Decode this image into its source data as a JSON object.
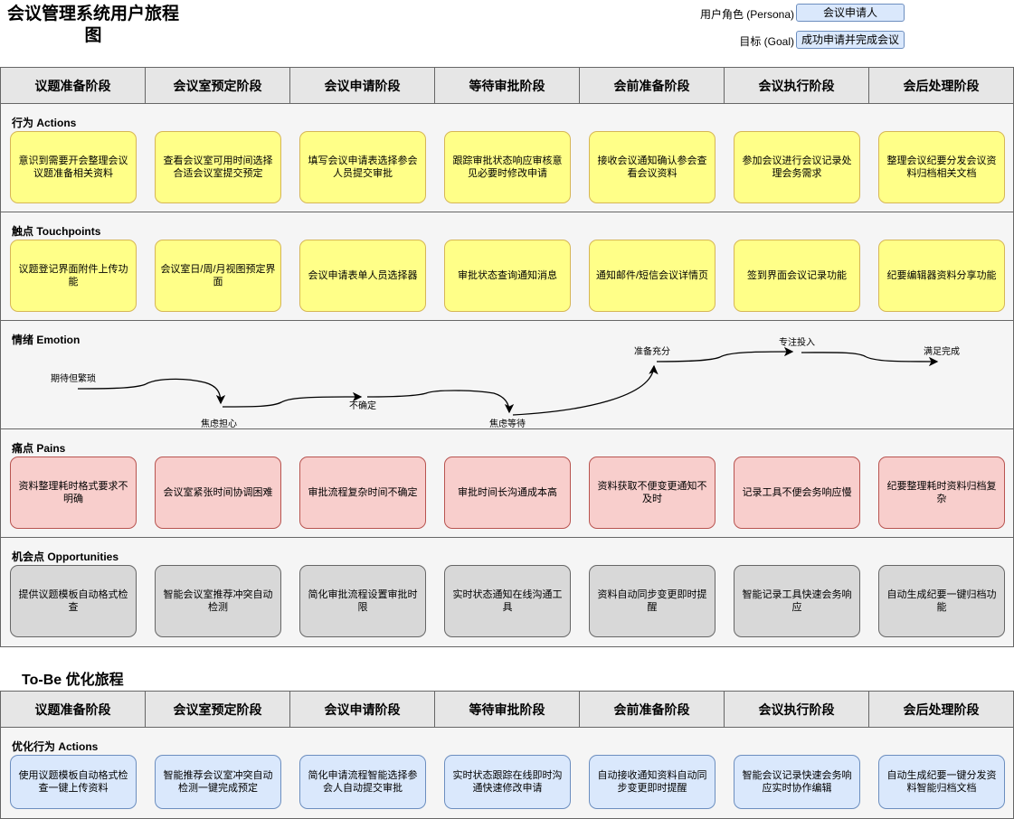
{
  "title": "会议管理系统用户旅程图",
  "persona": {
    "label": "用户角色 (Persona)",
    "value": "会议申请人"
  },
  "goal": {
    "label": "目标 (Goal)",
    "value": "成功申请并完成会议"
  },
  "stages": [
    "议题准备阶段",
    "会议室预定阶段",
    "会议申请阶段",
    "等待审批阶段",
    "会前准备阶段",
    "会议执行阶段",
    "会后处理阶段"
  ],
  "actions": {
    "label": "行为 Actions",
    "items": [
      "意识到需要开会整理会议议题准备相关资料",
      "查看会议室可用时间选择合适会议室提交预定",
      "填写会议申请表选择参会人员提交审批",
      "跟踪审批状态响应审核意见必要时修改申请",
      "接收会议通知确认参会查看会议资料",
      "参加会议进行会议记录处理会务需求",
      "整理会议纪要分发会议资料归档相关文档"
    ]
  },
  "touchpoints": {
    "label": "触点 Touchpoints",
    "items": [
      "议题登记界面附件上传功能",
      "会议室日/周/月视图预定界面",
      "会议申请表单人员选择器",
      "审批状态查询通知消息",
      "通知邮件/短信会议详情页",
      "签到界面会议记录功能",
      "纪要编辑器资料分享功能"
    ]
  },
  "emotion": {
    "label": "情绪 Emotion",
    "points": [
      "期待但繁琐",
      "焦虑担心",
      "不确定",
      "焦虑等待",
      "准备充分",
      "专注投入",
      "满足完成"
    ]
  },
  "pains": {
    "label": "痛点 Pains",
    "items": [
      "资料整理耗时格式要求不明确",
      "会议室紧张时间协调困难",
      "审批流程复杂时间不确定",
      "审批时间长沟通成本高",
      "资料获取不便变更通知不及时",
      "记录工具不便会务响应慢",
      "纪要整理耗时资料归档复杂"
    ]
  },
  "opportunities": {
    "label": "机会点 Opportunities",
    "items": [
      "提供议题模板自动格式检查",
      "智能会议室推荐冲突自动检测",
      "简化审批流程设置审批时限",
      "实时状态通知在线沟通工具",
      "资料自动同步变更即时提醒",
      "智能记录工具快速会务响应",
      "自动生成纪要一键归档功能"
    ]
  },
  "tobe": {
    "title": "To-Be 优化旅程",
    "stages": [
      "议题准备阶段",
      "会议室预定阶段",
      "会议申请阶段",
      "等待审批阶段",
      "会前准备阶段",
      "会议执行阶段",
      "会后处理阶段"
    ],
    "actions": {
      "label": "优化行为 Actions",
      "items": [
        "使用议题模板自动格式检查一键上传资料",
        "智能推荐会议室冲突自动检测一键完成预定",
        "简化申请流程智能选择参会人自动提交审批",
        "实时状态跟踪在线即时沟通快速修改申请",
        "自动接收通知资料自动同步变更即时提醒",
        "智能会议记录快速会务响应实时协作编辑",
        "自动生成纪要一键分发资料智能归档文档"
      ]
    }
  },
  "colors": {
    "action": "#ffff88",
    "pain": "#f8cecc",
    "opportunity": "#d8d8d8",
    "tobe": "#dae8fc"
  }
}
